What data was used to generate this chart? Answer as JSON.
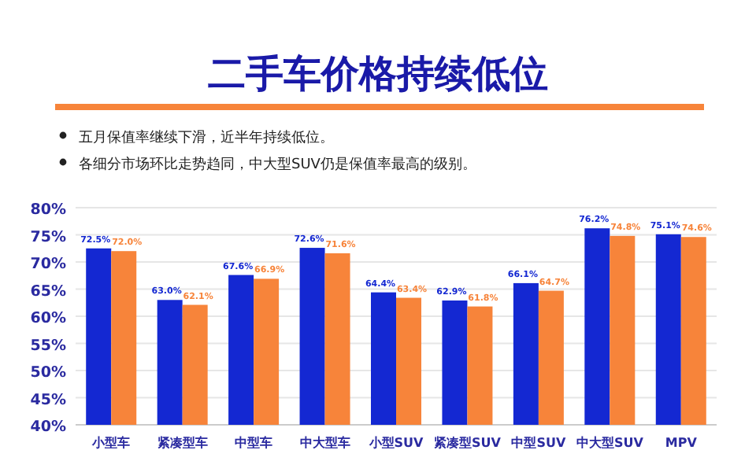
{
  "chart_data": {
    "type": "bar",
    "title": "二手车价格持续低位",
    "annotations": [
      "五月保值率继续下滑，近半年持续低位。",
      "各细分市场环比走势趋同，中大型SUV仍是保值率最高的级别。"
    ],
    "categories": [
      "小型车",
      "紧凑型车",
      "中型车",
      "中大型车",
      "小型SUV",
      "紧凑型SUV",
      "中型SUV",
      "中大型SUV",
      "MPV"
    ],
    "series": [
      {
        "color": "#1428d2",
        "values": [
          72.5,
          63.0,
          67.6,
          72.6,
          64.4,
          62.9,
          66.1,
          76.2,
          75.1
        ],
        "value_labels": [
          "72.5%",
          "63.0%",
          "67.6%",
          "72.6%",
          "64.4%",
          "62.9%",
          "66.1%",
          "76.2%",
          "75.1%"
        ]
      },
      {
        "color": "#f7843a",
        "values": [
          72.0,
          62.1,
          66.9,
          71.6,
          63.4,
          61.8,
          64.7,
          74.8,
          74.6
        ],
        "value_labels": [
          "72.0%",
          "62.1%",
          "66.9%",
          "71.6%",
          "63.4%",
          "61.8%",
          "64.7%",
          "74.8%",
          "74.6%"
        ]
      }
    ],
    "ylim": [
      40,
      80
    ],
    "yticks": [
      {
        "value": 40,
        "label": "40%"
      },
      {
        "value": 45,
        "label": "45%"
      },
      {
        "value": 50,
        "label": "50%"
      },
      {
        "value": 55,
        "label": "55%"
      },
      {
        "value": 60,
        "label": "60%"
      },
      {
        "value": 65,
        "label": "65%"
      },
      {
        "value": 70,
        "label": "70%"
      },
      {
        "value": 75,
        "label": "75%"
      },
      {
        "value": 80,
        "label": "80%"
      }
    ],
    "grid": "y"
  }
}
